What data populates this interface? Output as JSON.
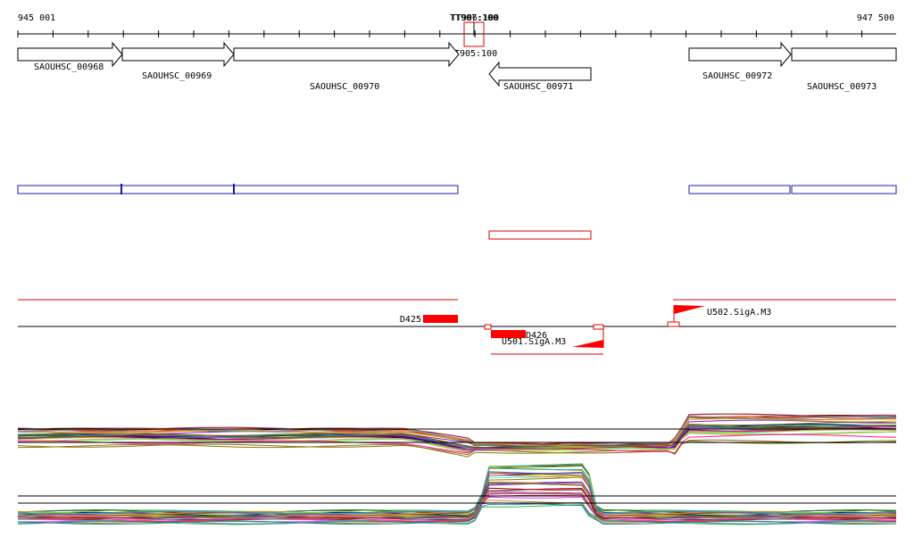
{
  "coords": {
    "start_label": "945 001",
    "end_label": "947 500",
    "start": 945001,
    "end": 947500
  },
  "terminators": [
    {
      "label": "TT907:100"
    },
    {
      "label": "TT906:100"
    },
    {
      "label": "TT905:100"
    }
  ],
  "genes": [
    {
      "id": "SAOUHSC_00968",
      "start": 945001,
      "end": 945300,
      "strand": "+"
    },
    {
      "id": "SAOUHSC_00969",
      "start": 945300,
      "end": 945610,
      "strand": "+"
    },
    {
      "id": "SAOUHSC_00970",
      "start": 945610,
      "end": 946256,
      "strand": "+"
    },
    {
      "id": "SAOUHSC_00971",
      "start": 946393,
      "end": 946687,
      "strand": "-"
    },
    {
      "id": "SAOUHSC_00972",
      "start": 946913,
      "end": 947202,
      "strand": "+"
    },
    {
      "id": "SAOUHSC_00973",
      "start": 947202,
      "end": 947500,
      "strand": "+"
    }
  ],
  "regulons": [
    {
      "label": "D425",
      "strand": "+"
    },
    {
      "label": "D426",
      "strand": "-"
    }
  ],
  "promoters": [
    {
      "label": "U502.SigA.M3",
      "strand": "+"
    },
    {
      "label": "U501.SigA.M3",
      "strand": "-"
    }
  ],
  "colors": {
    "gene_outline": "#000000",
    "transcript_plus": "#1a1aa6",
    "transcript_minus": "#e00000",
    "feature": "#ff0000"
  }
}
